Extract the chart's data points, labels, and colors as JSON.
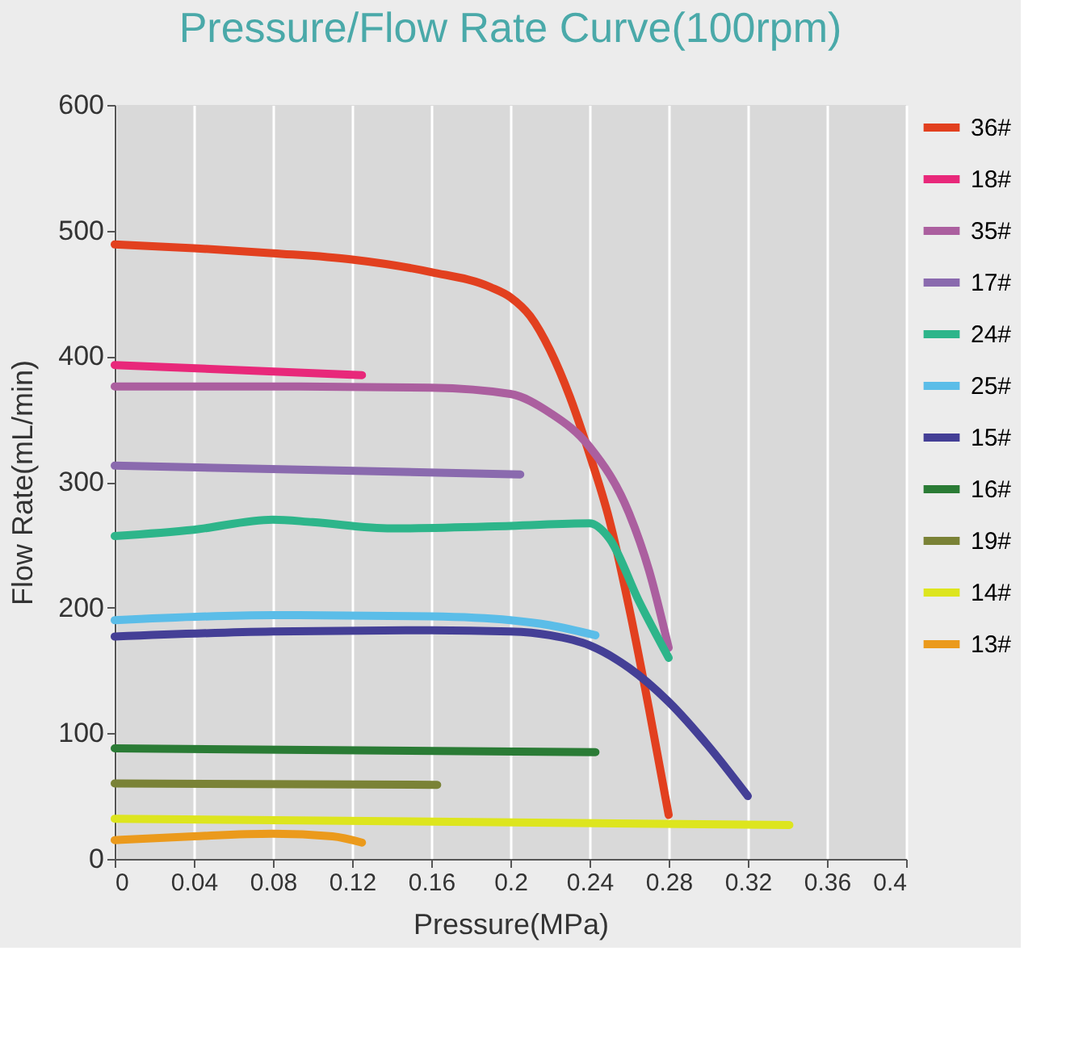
{
  "chart_data": {
    "type": "line",
    "title": "Pressure/Flow Rate Curve(100rpm)",
    "xlabel": "Pressure(MPa)",
    "ylabel": "Flow Rate(mL/min)",
    "xlim": [
      0,
      0.4
    ],
    "xticks": [
      0,
      0.04,
      0.08,
      0.12,
      0.16,
      0.2,
      0.24,
      0.28,
      0.32,
      0.36,
      0.4
    ],
    "ylim": [
      0,
      600
    ],
    "yticks": [
      0,
      100,
      200,
      300,
      400,
      500,
      600
    ],
    "grid": "x",
    "legend": "right",
    "marker": "none",
    "line_style": "solid",
    "series": [
      {
        "name": "36#",
        "color": "#e2401f",
        "x": [
          0,
          0.04,
          0.08,
          0.12,
          0.16,
          0.19,
          0.2,
          0.21,
          0.22,
          0.23,
          0.24,
          0.25,
          0.26,
          0.27,
          0.28
        ],
        "values": [
          489,
          486,
          482,
          477,
          467,
          455,
          447,
          432,
          405,
          368,
          322,
          270,
          200,
          120,
          35
        ]
      },
      {
        "name": "18#",
        "color": "#e8287a",
        "x": [
          0,
          0.125
        ],
        "values": [
          393,
          385
        ]
      },
      {
        "name": "35#",
        "color": "#ab5f9f",
        "x": [
          0,
          0.08,
          0.16,
          0.2,
          0.22,
          0.24,
          0.26,
          0.27,
          0.28
        ],
        "values": [
          376,
          376,
          375,
          370,
          355,
          328,
          275,
          230,
          168
        ]
      },
      {
        "name": "17#",
        "color": "#8a6aae",
        "x": [
          0,
          0.205
        ],
        "values": [
          313,
          306
        ]
      },
      {
        "name": "24#",
        "color": "#2db58a",
        "x": [
          0,
          0.04,
          0.08,
          0.1,
          0.14,
          0.2,
          0.24,
          0.25,
          0.265,
          0.28
        ],
        "values": [
          257,
          262,
          270,
          268,
          263,
          265,
          267,
          255,
          205,
          160
        ]
      },
      {
        "name": "25#",
        "color": "#5bbde8",
        "x": [
          0,
          0.08,
          0.16,
          0.2,
          0.22,
          0.243
        ],
        "values": [
          190,
          194,
          193,
          190,
          186,
          178
        ]
      },
      {
        "name": "15#",
        "color": "#443f96",
        "x": [
          0,
          0.08,
          0.16,
          0.2,
          0.22,
          0.24,
          0.26,
          0.28,
          0.3,
          0.32
        ],
        "values": [
          177,
          181,
          182,
          181,
          178,
          170,
          152,
          125,
          90,
          50
        ]
      },
      {
        "name": "16#",
        "color": "#2a7b35",
        "x": [
          0,
          0.243
        ],
        "values": [
          88,
          85
        ]
      },
      {
        "name": "19#",
        "color": "#7a8236",
        "x": [
          0,
          0.163
        ],
        "values": [
          60,
          59
        ]
      },
      {
        "name": "14#",
        "color": "#dde51e",
        "x": [
          0,
          0.341
        ],
        "values": [
          32,
          27
        ]
      },
      {
        "name": "13#",
        "color": "#eb9a1c",
        "x": [
          0,
          0.04,
          0.08,
          0.11,
          0.125
        ],
        "values": [
          15,
          18,
          20,
          18,
          13
        ]
      }
    ]
  }
}
